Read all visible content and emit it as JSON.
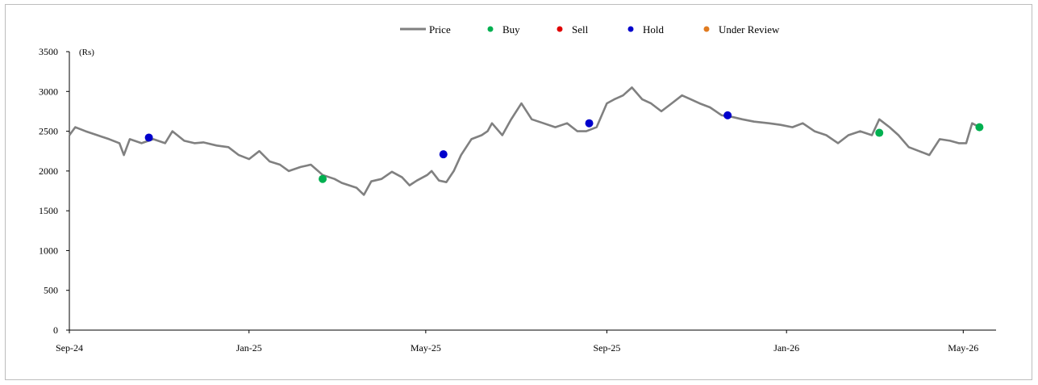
{
  "chart_data": {
    "type": "line",
    "ylabel": "(Rs)",
    "ylim": [
      0,
      3500
    ],
    "yticks": [
      0,
      500,
      1000,
      1500,
      2000,
      2500,
      3000,
      3500
    ],
    "xlim": [
      "2024-09-01",
      "2026-05-20"
    ],
    "xticks": [
      {
        "date": "2024-09-01",
        "label": "Sep-24"
      },
      {
        "date": "2025-01-01",
        "label": "Jan-25"
      },
      {
        "date": "2025-05-01",
        "label": "May-25"
      },
      {
        "date": "2025-09-01",
        "label": "Sep-25"
      },
      {
        "date": "2026-01-01",
        "label": "Jan-26"
      },
      {
        "date": "2026-05-01",
        "label": "May-26"
      }
    ],
    "grid": false,
    "legend_position": "top-center",
    "legend": [
      {
        "name": "Price",
        "kind": "line",
        "color": "#808080"
      },
      {
        "name": "Buy",
        "kind": "dot",
        "color": "#00b050"
      },
      {
        "name": "Sell",
        "kind": "dot",
        "color": "#e00000"
      },
      {
        "name": "Hold",
        "kind": "dot",
        "color": "#0000cc"
      },
      {
        "name": "Under Review",
        "kind": "dot",
        "color": "#e07b20"
      }
    ],
    "series": [
      {
        "name": "Price",
        "x": [
          "2024-09-01",
          "2024-09-05",
          "2024-09-12",
          "2024-09-20",
          "2024-09-28",
          "2024-10-05",
          "2024-10-08",
          "2024-10-12",
          "2024-10-20",
          "2024-10-28",
          "2024-11-05",
          "2024-11-10",
          "2024-11-18",
          "2024-11-25",
          "2024-12-01",
          "2024-12-10",
          "2024-12-18",
          "2024-12-25",
          "2025-01-01",
          "2025-01-08",
          "2025-01-15",
          "2025-01-22",
          "2025-01-28",
          "2025-02-05",
          "2025-02-12",
          "2025-02-20",
          "2025-02-28",
          "2025-03-05",
          "2025-03-10",
          "2025-03-15",
          "2025-03-20",
          "2025-03-25",
          "2025-04-01",
          "2025-04-08",
          "2025-04-15",
          "2025-04-20",
          "2025-04-25",
          "2025-05-02",
          "2025-05-05",
          "2025-05-10",
          "2025-05-15",
          "2025-05-20",
          "2025-05-25",
          "2025-06-01",
          "2025-06-08",
          "2025-06-12",
          "2025-06-15",
          "2025-06-22",
          "2025-06-28",
          "2025-07-05",
          "2025-07-12",
          "2025-07-20",
          "2025-07-28",
          "2025-08-05",
          "2025-08-12",
          "2025-08-18",
          "2025-08-25",
          "2025-09-01",
          "2025-09-06",
          "2025-09-12",
          "2025-09-18",
          "2025-09-25",
          "2025-10-01",
          "2025-10-08",
          "2025-10-15",
          "2025-10-22",
          "2025-10-28",
          "2025-11-03",
          "2025-11-10",
          "2025-11-18",
          "2025-11-25",
          "2025-12-02",
          "2025-12-10",
          "2025-12-20",
          "2025-12-28",
          "2026-01-05",
          "2026-01-12",
          "2026-01-20",
          "2026-01-28",
          "2026-02-05",
          "2026-02-12",
          "2026-02-20",
          "2026-02-28",
          "2026-03-05",
          "2026-03-12",
          "2026-03-18",
          "2026-03-25",
          "2026-04-01",
          "2026-04-08",
          "2026-04-15",
          "2026-04-22",
          "2026-04-28",
          "2026-05-03",
          "2026-05-07",
          "2026-05-12"
        ],
        "values": [
          2450,
          2550,
          2500,
          2450,
          2400,
          2350,
          2200,
          2400,
          2350,
          2400,
          2350,
          2500,
          2380,
          2350,
          2360,
          2320,
          2300,
          2200,
          2150,
          2250,
          2120,
          2080,
          2000,
          2050,
          2080,
          1950,
          1900,
          1850,
          1820,
          1790,
          1700,
          1870,
          1900,
          1990,
          1920,
          1820,
          1880,
          1950,
          2000,
          1880,
          1860,
          2000,
          2200,
          2400,
          2450,
          2500,
          2600,
          2450,
          2650,
          2850,
          2650,
          2600,
          2550,
          2600,
          2500,
          2500,
          2550,
          2850,
          2900,
          2950,
          3050,
          2900,
          2850,
          2750,
          2850,
          2950,
          2900,
          2850,
          2800,
          2700,
          2680,
          2650,
          2620,
          2600,
          2580,
          2550,
          2600,
          2500,
          2450,
          2350,
          2450,
          2500,
          2450,
          2650,
          2550,
          2450,
          2300,
          2250,
          2200,
          2400,
          2380,
          2350,
          2350,
          2600,
          2550
        ]
      },
      {
        "name": "Buy",
        "x": [
          "2025-02-20",
          "2026-03-05",
          "2026-05-12"
        ],
        "values": [
          1900,
          2480,
          2550
        ]
      },
      {
        "name": "Hold",
        "x": [
          "2024-10-25",
          "2025-05-13",
          "2025-08-20",
          "2025-11-22"
        ],
        "values": [
          2420,
          2210,
          2600,
          2700
        ]
      }
    ]
  }
}
